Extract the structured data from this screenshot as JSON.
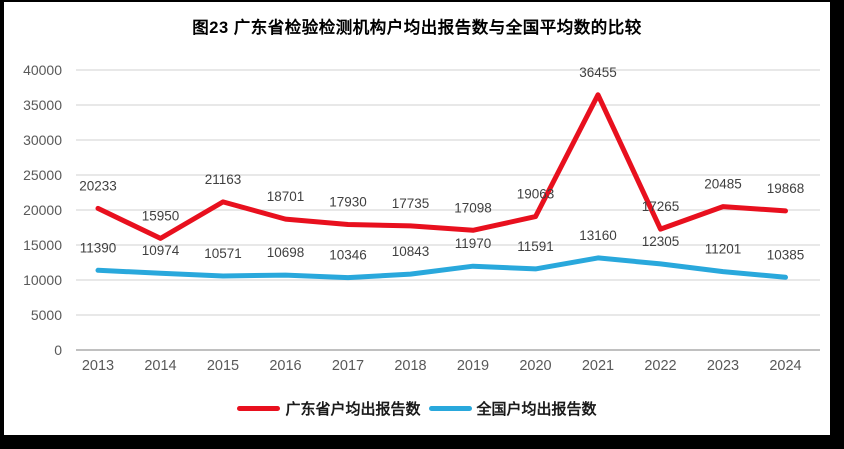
{
  "chart_data": {
    "type": "line",
    "title": "图23  广东省检验检测机构户均出报告数与全国平均数的比较",
    "categories": [
      "2013",
      "2014",
      "2015",
      "2016",
      "2017",
      "2018",
      "2019",
      "2020",
      "2021",
      "2022",
      "2023",
      "2024"
    ],
    "series": [
      {
        "name": "广东省户均出报告数",
        "color": "#E8101E",
        "values": [
          20233,
          15950,
          21163,
          18701,
          17930,
          17735,
          17098,
          19063,
          36455,
          17265,
          20485,
          19868
        ]
      },
      {
        "name": "全国户均出报告数",
        "color": "#29A8DC",
        "values": [
          11390,
          10974,
          10571,
          10698,
          10346,
          10843,
          11970,
          11591,
          13160,
          12305,
          11201,
          10385
        ]
      }
    ],
    "y_ticks": [
      0,
      5000,
      10000,
      15000,
      20000,
      25000,
      30000,
      35000,
      40000
    ],
    "ylim": [
      0,
      40000
    ],
    "grid": "horizontal",
    "legend_position": "bottom",
    "data_labels": true
  },
  "colors": {
    "grid": "#D9D9D9",
    "baseline": "#C0C0C0",
    "axis_text": "#595959",
    "label_text": "#404040",
    "frame": "#000000",
    "background": "#FFFFFF"
  }
}
